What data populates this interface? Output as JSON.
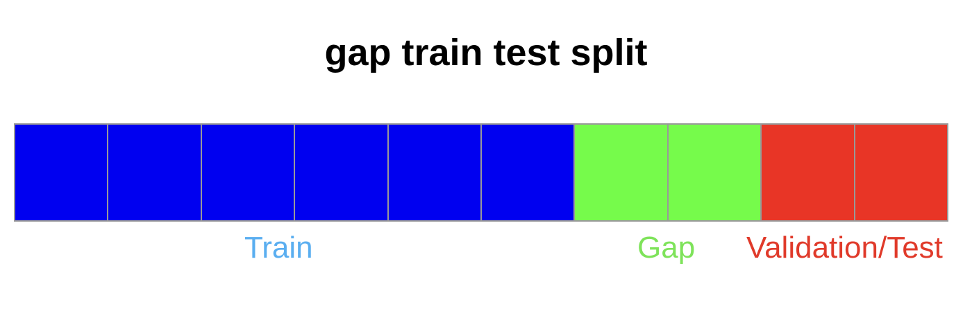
{
  "title": "gap train test split",
  "segments": [
    {
      "kind": "train",
      "color": "#0000f0"
    },
    {
      "kind": "train",
      "color": "#0000f0"
    },
    {
      "kind": "train",
      "color": "#0000f0"
    },
    {
      "kind": "train",
      "color": "#0000f0"
    },
    {
      "kind": "train",
      "color": "#0000f0"
    },
    {
      "kind": "train",
      "color": "#0000f0"
    },
    {
      "kind": "gap",
      "color": "#76fb4b"
    },
    {
      "kind": "gap",
      "color": "#76fb4b"
    },
    {
      "kind": "test",
      "color": "#e83526"
    },
    {
      "kind": "test",
      "color": "#e83526"
    }
  ],
  "labels": {
    "train": {
      "text": "Train",
      "color": "#5aaef0"
    },
    "gap": {
      "text": "Gap",
      "color": "#7ee35a"
    },
    "test": {
      "text": "Validation/Test",
      "color": "#e03a2a"
    }
  }
}
